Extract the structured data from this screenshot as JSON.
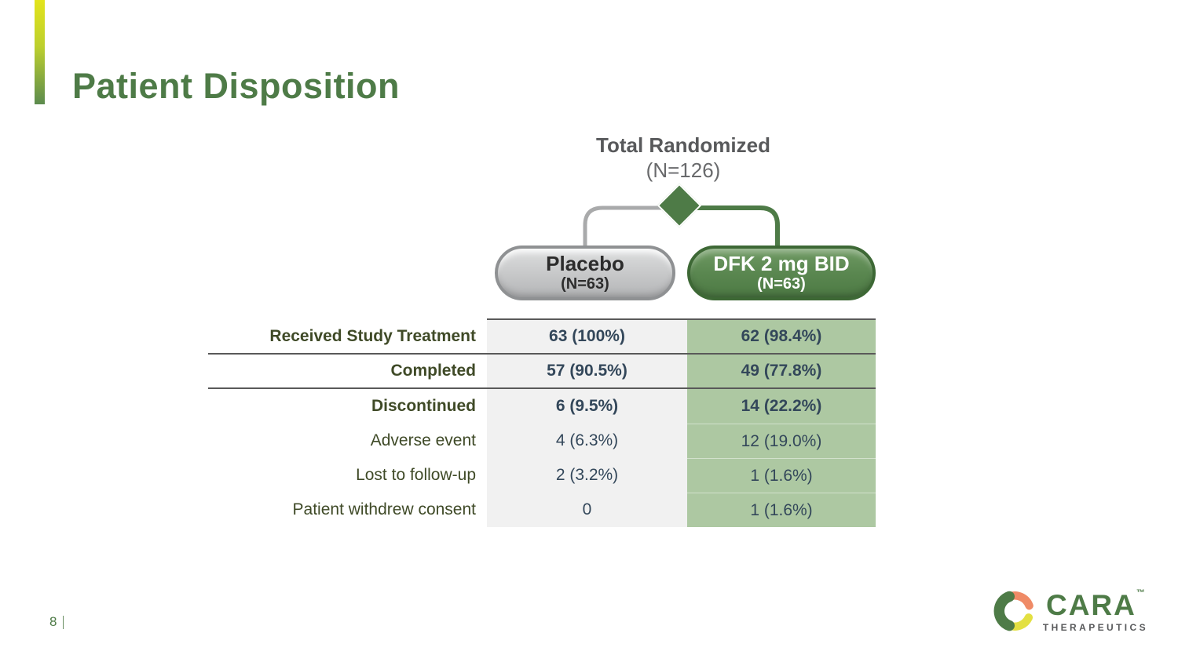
{
  "slide": {
    "title": "Patient Disposition"
  },
  "flow": {
    "total_label": "Total Randomized",
    "total_n": "(N=126)",
    "arms": [
      {
        "name": "Placebo",
        "n": "(N=63)"
      },
      {
        "name": "DFK 2 mg BID",
        "n": "(N=63)"
      }
    ]
  },
  "table": {
    "columns": [
      "",
      "Placebo",
      "DFK 2 mg BID"
    ],
    "rows": [
      {
        "label": "Received Study Treatment",
        "bold": true,
        "placebo": "63 (100%)",
        "dfk": "62 (98.4%)",
        "separator_after": true
      },
      {
        "label": "Completed",
        "bold": true,
        "placebo": "57 (90.5%)",
        "dfk": "49 (77.8%)",
        "separator_after": true
      },
      {
        "label": "Discontinued",
        "bold": true,
        "placebo": "6 (9.5%)",
        "dfk": "14 (22.2%)",
        "separator_after": false
      },
      {
        "label": "Adverse event",
        "bold": false,
        "placebo": "4 (6.3%)",
        "dfk": "12 (19.0%)",
        "separator_after": false
      },
      {
        "label": "Lost to follow-up",
        "bold": false,
        "placebo": "2 (3.2%)",
        "dfk": "1 (1.6%)",
        "separator_after": false
      },
      {
        "label": "Patient withdrew consent",
        "bold": false,
        "placebo": "0",
        "dfk": "1 (1.6%)",
        "separator_after": false
      }
    ]
  },
  "footer": {
    "page_number": "8",
    "logo_word": "CARA",
    "logo_tm": "™",
    "logo_sub": "THERAPEUTICS"
  },
  "colors": {
    "title_green": "#4e7b47",
    "accent_yellow": "#e3e41c",
    "accent_green": "#5c8b4e",
    "pill_gray_border": "#8f9193",
    "pill_green_border": "#3d6835",
    "table_green_bg": "#adc8a2",
    "table_gray_bg": "#f1f1f1",
    "label_olive": "#3f4a27",
    "value_slate": "#33475a",
    "line_dark": "#595959",
    "logo_coral": "#ef8a66",
    "logo_yellow": "#e3e042"
  }
}
